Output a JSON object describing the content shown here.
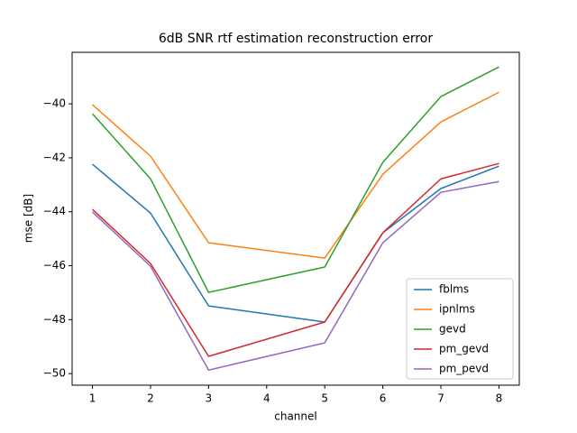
{
  "chart_data": {
    "type": "line",
    "title": "6dB SNR rtf estimation reconstruction error",
    "xlabel": "channel",
    "ylabel": "mse [dB]",
    "x": [
      1,
      2,
      3,
      5,
      6,
      7,
      8
    ],
    "series": [
      {
        "name": "fblms",
        "color": "#1f77b4",
        "values": [
          -42.24,
          -44.05,
          -47.49,
          -48.09,
          -44.78,
          -43.14,
          -42.31
        ]
      },
      {
        "name": "ipnlms",
        "color": "#ff7f0e",
        "values": [
          -40.03,
          -41.94,
          -45.15,
          -45.72,
          -42.61,
          -40.67,
          -39.57
        ]
      },
      {
        "name": "gevd",
        "color": "#2ca02c",
        "values": [
          -40.37,
          -42.78,
          -46.99,
          -46.05,
          -42.17,
          -39.73,
          -38.63
        ]
      },
      {
        "name": "pm_gevd",
        "color": "#d62728",
        "values": [
          -43.91,
          -45.92,
          -49.36,
          -48.09,
          -44.78,
          -42.78,
          -42.21
        ]
      },
      {
        "name": "pm_pevd",
        "color": "#9467bd",
        "values": [
          -44.01,
          -46.02,
          -49.87,
          -48.86,
          -45.15,
          -43.28,
          -42.88
        ]
      }
    ],
    "xlim": [
      0.65,
      8.35
    ],
    "xticks": [
      1,
      2,
      3,
      4,
      5,
      6,
      7,
      8
    ],
    "ylim": [
      -50.43,
      -38.09
    ],
    "yticks": [
      {
        "value": -50,
        "label": "−50"
      },
      {
        "value": -48,
        "label": "−48"
      },
      {
        "value": -46,
        "label": "−46"
      },
      {
        "value": -44,
        "label": "−44"
      },
      {
        "value": -42,
        "label": "−42"
      },
      {
        "value": -40,
        "label": "−40"
      }
    ],
    "grid": false,
    "legend": "lower right"
  }
}
